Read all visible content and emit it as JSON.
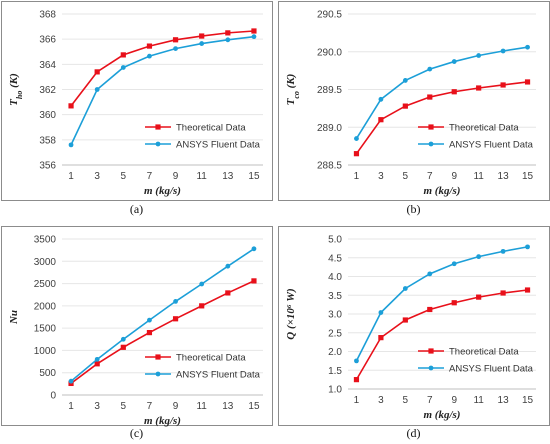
{
  "colors": {
    "theoretical": "#e8101a",
    "ansys": "#1c9fd8",
    "gridline": "#e6e6e6",
    "frame": "#8c8c8c"
  },
  "chart_data": [
    {
      "panel": "(a)",
      "type": "line",
      "xlabel": "m (kg/s)",
      "ylabel_main": "T",
      "ylabel_sub": "ho",
      "ylabel_unit": " (K)",
      "x": [
        1,
        3,
        5,
        7,
        9,
        11,
        13,
        15
      ],
      "ylim": [
        356,
        368
      ],
      "yticks": [
        "356",
        "358",
        "360",
        "362",
        "364",
        "366",
        "368"
      ],
      "legend_position": "bottom-right",
      "series": [
        {
          "name": "Theoretical Data",
          "marker": "square",
          "color": "#e8101a",
          "values": [
            360.7,
            363.4,
            364.75,
            365.45,
            365.95,
            366.25,
            366.5,
            366.65
          ]
        },
        {
          "name": "ANSYS Fluent Data",
          "marker": "circle",
          "color": "#1c9fd8",
          "values": [
            357.6,
            362.0,
            363.75,
            364.65,
            365.25,
            365.65,
            365.95,
            366.2
          ]
        }
      ]
    },
    {
      "panel": "(b)",
      "type": "line",
      "xlabel": "m (kg/s)",
      "ylabel_main": "T",
      "ylabel_sub": "co",
      "ylabel_unit": " (K)",
      "x": [
        1,
        3,
        5,
        7,
        9,
        11,
        13,
        15
      ],
      "ylim": [
        288.5,
        290.5
      ],
      "yticks": [
        "288.5",
        "289.0",
        "289.5",
        "290.0",
        "290.5"
      ],
      "legend_position": "bottom-right",
      "series": [
        {
          "name": "Theoretical Data",
          "marker": "square",
          "color": "#e8101a",
          "values": [
            288.65,
            289.1,
            289.28,
            289.4,
            289.47,
            289.52,
            289.56,
            289.6
          ]
        },
        {
          "name": "ANSYS Fluent Data",
          "marker": "circle",
          "color": "#1c9fd8",
          "values": [
            288.85,
            289.37,
            289.62,
            289.77,
            289.87,
            289.95,
            290.01,
            290.06
          ]
        }
      ]
    },
    {
      "panel": "(c)",
      "type": "line",
      "xlabel": "m (kg/s)",
      "ylabel_main": "Nu",
      "ylabel_sub": "",
      "ylabel_unit": "",
      "x": [
        1,
        3,
        5,
        7,
        9,
        11,
        13,
        15
      ],
      "ylim": [
        0,
        3500
      ],
      "yticks": [
        "0",
        "500",
        "1000",
        "1500",
        "2000",
        "2500",
        "3000",
        "3500"
      ],
      "legend_position": "bottom-right",
      "series": [
        {
          "name": "Theoretical Data",
          "marker": "square",
          "color": "#e8101a",
          "values": [
            260,
            700,
            1070,
            1400,
            1710,
            2000,
            2290,
            2560
          ]
        },
        {
          "name": "ANSYS Fluent Data",
          "marker": "circle",
          "color": "#1c9fd8",
          "values": [
            310,
            800,
            1250,
            1680,
            2100,
            2490,
            2890,
            3280
          ]
        }
      ]
    },
    {
      "panel": "(d)",
      "type": "line",
      "xlabel": "m (kg/s)",
      "ylabel_main": "Q",
      "ylabel_sub": "",
      "ylabel_unit": " (×10⁶ W)",
      "x": [
        1,
        3,
        5,
        7,
        9,
        11,
        13,
        15
      ],
      "ylim": [
        1.0,
        5.0
      ],
      "yticks": [
        "1.0",
        "1.5",
        "2.0",
        "2.5",
        "3.0",
        "3.5",
        "4.0",
        "4.5",
        "5.0"
      ],
      "legend_position": "bottom-right",
      "series": [
        {
          "name": "Theoretical Data",
          "marker": "square",
          "color": "#e8101a",
          "values": [
            1.25,
            2.37,
            2.84,
            3.12,
            3.3,
            3.45,
            3.56,
            3.64
          ]
        },
        {
          "name": "ANSYS Fluent Data",
          "marker": "circle",
          "color": "#1c9fd8",
          "values": [
            1.75,
            3.04,
            3.68,
            4.07,
            4.34,
            4.53,
            4.67,
            4.79
          ]
        }
      ]
    }
  ]
}
